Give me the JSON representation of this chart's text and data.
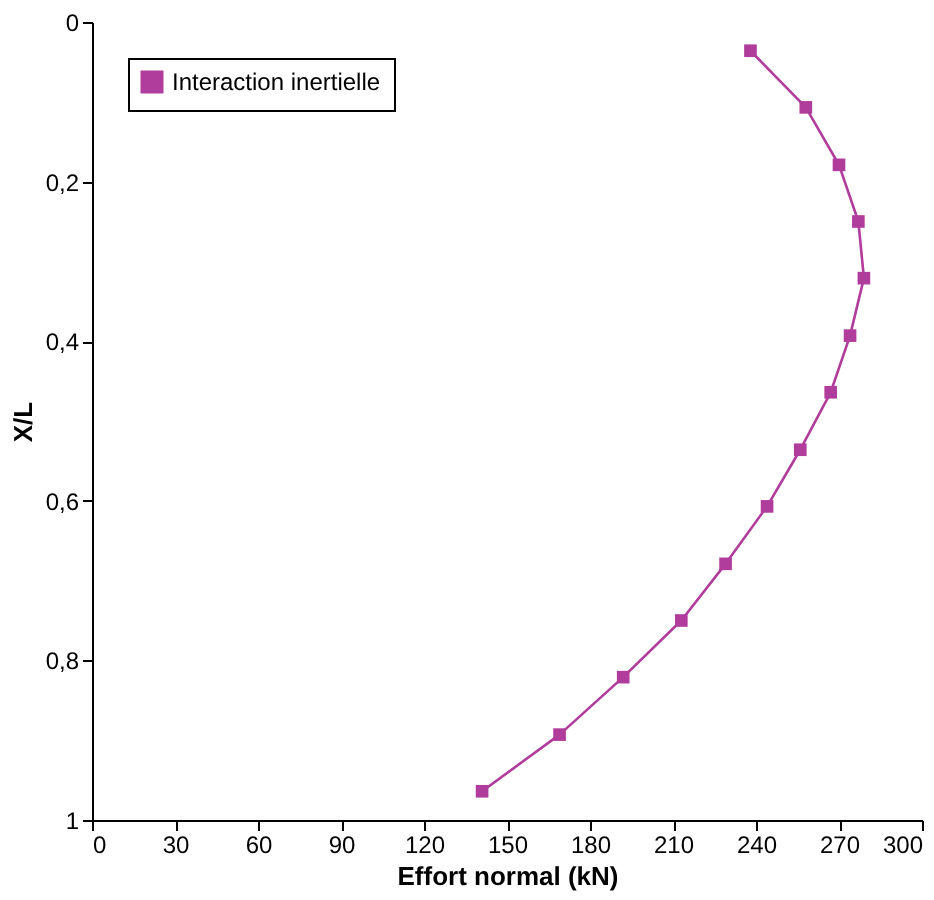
{
  "chart_data": {
    "type": "line",
    "xlabel": "Effort normal (kN)",
    "ylabel": "X/L",
    "xlim": [
      0,
      300
    ],
    "xticks": [
      0,
      30,
      60,
      90,
      120,
      150,
      180,
      210,
      240,
      270,
      300
    ],
    "ylim": [
      1,
      0
    ],
    "yticks": [
      0,
      {
        "value": 0.2,
        "label": "0,2"
      },
      {
        "value": 0.4,
        "label": "0,4"
      },
      {
        "value": 0.6,
        "label": "0,6"
      },
      {
        "value": 0.8,
        "label": "0,8"
      },
      1
    ],
    "series": [
      {
        "name": "Interaction inertielle",
        "color": "#b03c9c",
        "x": [
          238,
          258,
          270,
          277,
          279,
          274,
          267,
          256,
          244,
          229,
          213,
          192,
          169,
          141
        ],
        "values": [
          0.036,
          0.107,
          0.179,
          0.25,
          0.321,
          0.393,
          0.464,
          0.536,
          0.607,
          0.679,
          0.75,
          0.821,
          0.893,
          0.964
        ]
      }
    ],
    "marker": "square",
    "line_style": "solid",
    "grid": false,
    "legend": "top left"
  }
}
